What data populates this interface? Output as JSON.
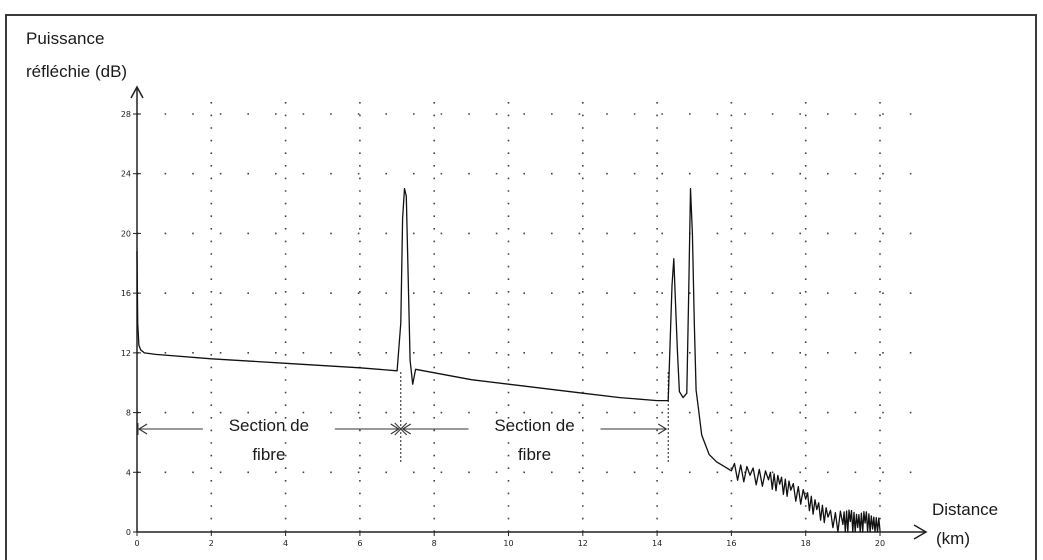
{
  "chart_data": {
    "type": "line",
    "title": "",
    "ylabel": [
      "Puissance",
      "réfléchie (dB)"
    ],
    "xlabel": [
      "Distance",
      "(km)"
    ],
    "xlim": [
      0,
      20
    ],
    "ylim": [
      0,
      28
    ],
    "x_ticks": [
      0,
      2,
      4,
      6,
      8,
      10,
      12,
      14,
      16,
      18,
      20
    ],
    "y_ticks": [
      0,
      4,
      8,
      12,
      16,
      20,
      24,
      28
    ],
    "grid": "dotted",
    "series": [
      {
        "x": [
          0,
          0.02,
          0.05,
          0.1,
          0.2,
          0.5,
          2,
          4,
          6,
          7.0,
          7.1,
          7.15,
          7.2,
          7.25,
          7.3,
          7.35,
          7.42,
          7.5,
          9,
          10,
          11,
          12,
          13,
          14,
          14.3,
          14.4,
          14.45,
          14.5,
          14.55,
          14.6,
          14.7,
          14.8,
          14.85,
          14.9,
          14.95,
          15.0,
          15.05,
          15.1,
          15.2,
          15.4,
          15.6,
          15.8,
          16,
          16.5,
          17,
          17.3,
          17.6,
          18,
          18.3,
          18.6,
          19,
          19.2,
          19.4,
          19.6,
          19.8,
          20
        ],
        "y": [
          18.8,
          14,
          12.5,
          12.2,
          12.0,
          11.9,
          11.6,
          11.3,
          11.0,
          10.8,
          14,
          21,
          23,
          22.5,
          17,
          11.5,
          9.9,
          10.9,
          10.2,
          9.9,
          9.6,
          9.3,
          9.0,
          8.8,
          8.8,
          16.5,
          18.3,
          15,
          12,
          9.4,
          9.0,
          9.3,
          16,
          23,
          20,
          14,
          9.5,
          8.5,
          6.5,
          5.2,
          4.7,
          4.4,
          4.1,
          3.8,
          3.5,
          3.2,
          2.8,
          2.2,
          1.5,
          1.0,
          0.5,
          0.7,
          0.3,
          0.6,
          0.2,
          0.1
        ]
      }
    ],
    "annotations": [
      {
        "label_lines": [
          "Section de",
          "fibre"
        ],
        "from": 0,
        "to": 7.1
      },
      {
        "label_lines": [
          "Section de",
          "fibre"
        ],
        "from": 7.1,
        "to": 14.3
      }
    ]
  }
}
